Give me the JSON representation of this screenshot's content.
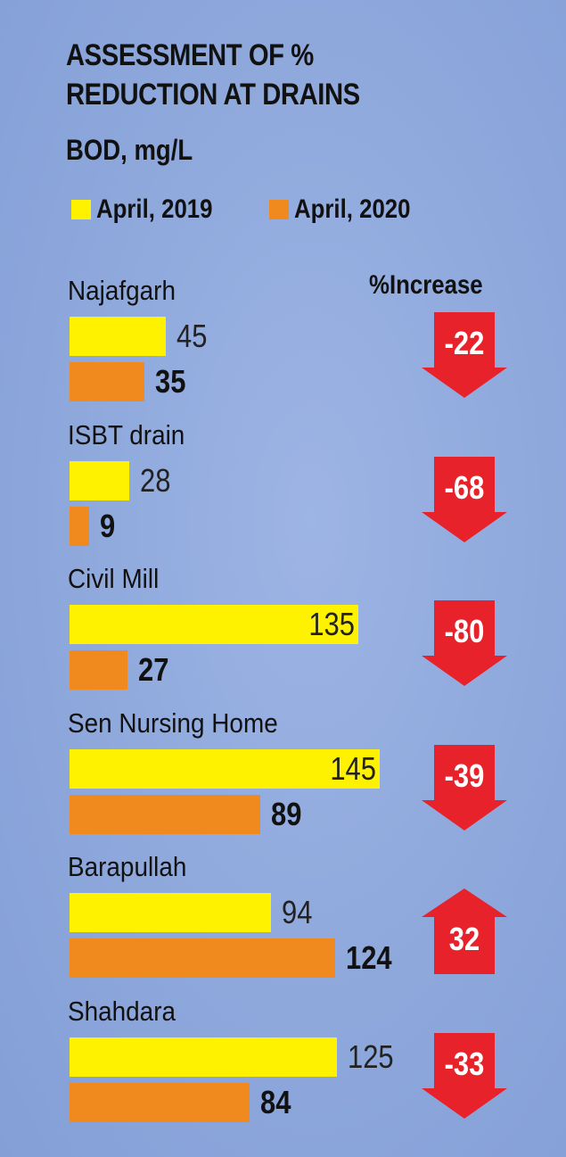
{
  "title_line1": "ASSESSMENT OF %",
  "title_line2": "REDUCTION AT DRAINS",
  "subtitle": "BOD, mg/L",
  "legend": [
    {
      "label": "April, 2019",
      "color": "#fff200"
    },
    {
      "label": "April, 2020",
      "color": "#f18a1e"
    }
  ],
  "change_header": "%Increase",
  "colors": {
    "up": "#e8222a",
    "down": "#e8222a",
    "background": "#8fa9dc"
  },
  "chart_data": {
    "type": "bar",
    "title": "ASSESSMENT OF % REDUCTION AT DRAINS",
    "ylabel": "BOD, mg/L",
    "categories": [
      "Najafgarh",
      "ISBT drain",
      "Civil Mill",
      "Sen Nursing Home",
      "Barapullah",
      "Shahdara"
    ],
    "series": [
      {
        "name": "April, 2019",
        "values": [
          45,
          28,
          135,
          145,
          94,
          125
        ]
      },
      {
        "name": "April, 2020",
        "values": [
          35,
          9,
          27,
          89,
          124,
          84
        ]
      }
    ],
    "change_labels": [
      "-22",
      "-68",
      "-80",
      "-39",
      "32",
      "-33"
    ],
    "change_direction": [
      "down",
      "down",
      "down",
      "down",
      "up",
      "down"
    ],
    "orientation": "horizontal",
    "legend_position": "top"
  }
}
